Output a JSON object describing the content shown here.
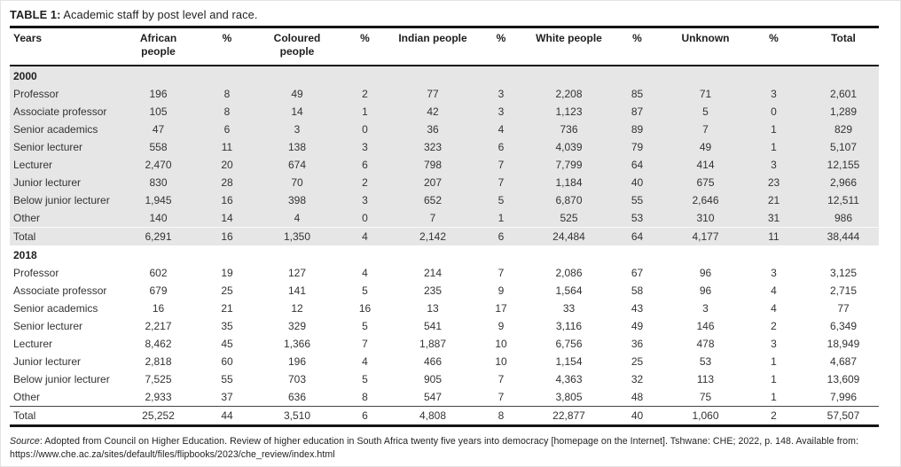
{
  "page": {
    "title": {
      "label": "TABLE 1:",
      "text": " Academic staff by post level and race."
    }
  },
  "table": {
    "columns": [
      "Years",
      "African\npeople",
      "%",
      "Coloured\npeople",
      "%",
      "Indian people",
      "%",
      "White people",
      "%",
      "Unknown",
      "%",
      "Total"
    ],
    "sections": [
      {
        "year": "2000",
        "shaded": true,
        "rows": [
          {
            "label": "Professor",
            "values": [
              "196",
              "8",
              "49",
              "2",
              "77",
              "3",
              "2,208",
              "85",
              "71",
              "3",
              "2,601"
            ]
          },
          {
            "label": "Associate professor",
            "values": [
              "105",
              "8",
              "14",
              "1",
              "42",
              "3",
              "1,123",
              "87",
              "5",
              "0",
              "1,289"
            ]
          },
          {
            "label": "Senior academics",
            "values": [
              "47",
              "6",
              "3",
              "0",
              "36",
              "4",
              "736",
              "89",
              "7",
              "1",
              "829"
            ]
          },
          {
            "label": "Senior lecturer",
            "values": [
              "558",
              "11",
              "138",
              "3",
              "323",
              "6",
              "4,039",
              "79",
              "49",
              "1",
              "5,107"
            ]
          },
          {
            "label": "Lecturer",
            "values": [
              "2,470",
              "20",
              "674",
              "6",
              "798",
              "7",
              "7,799",
              "64",
              "414",
              "3",
              "12,155"
            ]
          },
          {
            "label": "Junior lecturer",
            "values": [
              "830",
              "28",
              "70",
              "2",
              "207",
              "7",
              "1,184",
              "40",
              "675",
              "23",
              "2,966"
            ]
          },
          {
            "label": "Below junior lecturer",
            "values": [
              "1,945",
              "16",
              "398",
              "3",
              "652",
              "5",
              "6,870",
              "55",
              "2,646",
              "21",
              "12,511"
            ]
          },
          {
            "label": "Other",
            "values": [
              "140",
              "14",
              "4",
              "0",
              "7",
              "1",
              "525",
              "53",
              "310",
              "31",
              "986"
            ]
          },
          {
            "label": "Total",
            "is_total": true,
            "values": [
              "6,291",
              "16",
              "1,350",
              "4",
              "2,142",
              "6",
              "24,484",
              "64",
              "4,177",
              "11",
              "38,444"
            ]
          }
        ]
      },
      {
        "year": "2018",
        "shaded": false,
        "rows": [
          {
            "label": "Professor",
            "values": [
              "602",
              "19",
              "127",
              "4",
              "214",
              "7",
              "2,086",
              "67",
              "96",
              "3",
              "3,125"
            ]
          },
          {
            "label": "Associate professor",
            "values": [
              "679",
              "25",
              "141",
              "5",
              "235",
              "9",
              "1,564",
              "58",
              "96",
              "4",
              "2,715"
            ]
          },
          {
            "label": "Senior academics",
            "values": [
              "16",
              "21",
              "12",
              "16",
              "13",
              "17",
              "33",
              "43",
              "3",
              "4",
              "77"
            ]
          },
          {
            "label": "Senior lecturer",
            "values": [
              "2,217",
              "35",
              "329",
              "5",
              "541",
              "9",
              "3,116",
              "49",
              "146",
              "2",
              "6,349"
            ]
          },
          {
            "label": "Lecturer",
            "values": [
              "8,462",
              "45",
              "1,366",
              "7",
              "1,887",
              "10",
              "6,756",
              "36",
              "478",
              "3",
              "18,949"
            ]
          },
          {
            "label": "Junior lecturer",
            "values": [
              "2,818",
              "60",
              "196",
              "4",
              "466",
              "10",
              "1,154",
              "25",
              "53",
              "1",
              "4,687"
            ]
          },
          {
            "label": "Below junior lecturer",
            "values": [
              "7,525",
              "55",
              "703",
              "5",
              "905",
              "7",
              "4,363",
              "32",
              "113",
              "1",
              "13,609"
            ]
          },
          {
            "label": "Other",
            "values": [
              "2,933",
              "37",
              "636",
              "8",
              "547",
              "7",
              "3,805",
              "48",
              "75",
              "1",
              "7,996"
            ]
          },
          {
            "label": "Total",
            "is_total": true,
            "values": [
              "25,252",
              "44",
              "3,510",
              "6",
              "4,808",
              "8",
              "22,877",
              "40",
              "1,060",
              "2",
              "57,507"
            ]
          }
        ]
      }
    ]
  },
  "source": {
    "label": "Source",
    "text": ": Adopted from Council on Higher Education. Review of higher education in South Africa twenty five years into democracy [homepage on the Internet]. Tshwane: CHE; 2022, p. 148. Available from: https://www.che.ac.za/sites/default/files/flipbooks/2023/che_review/index.html"
  },
  "colors": {
    "section_shade": "#e6e6e6",
    "rule": "#141414",
    "text": "#333333"
  }
}
